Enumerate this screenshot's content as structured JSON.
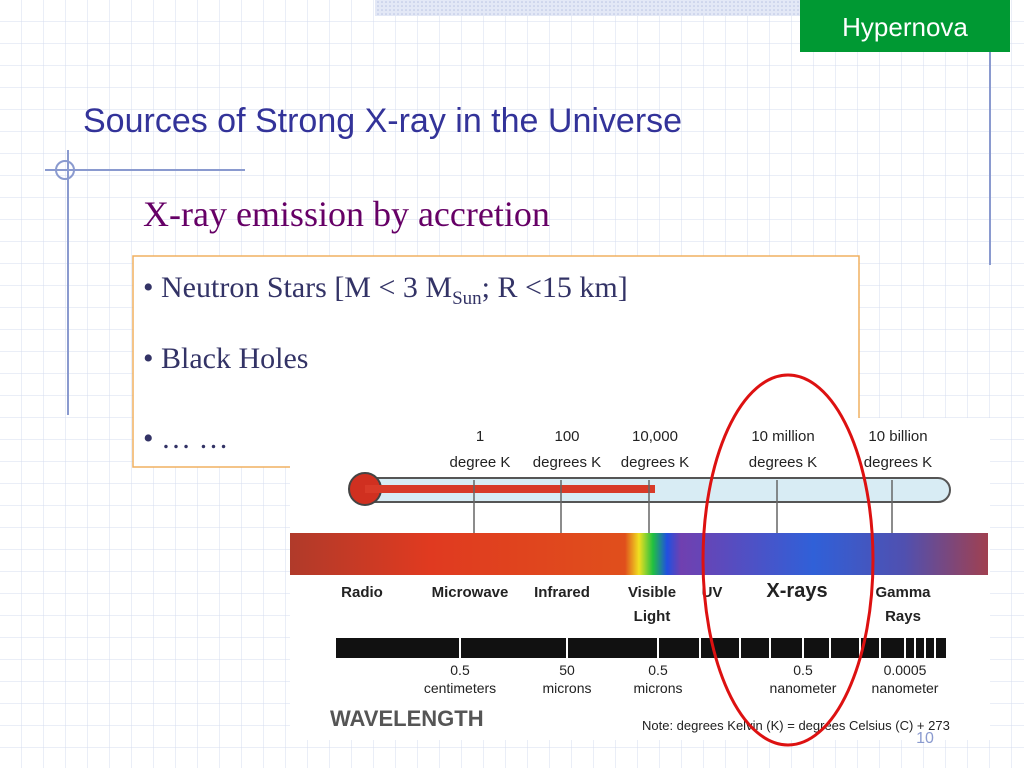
{
  "badge": "Hypernova",
  "title": "Sources of Strong X-ray in the Universe",
  "subtitle": "X-ray emission by accretion",
  "bullets": [
    {
      "text": "Neutron Stars [M < 3 M",
      "sub": "Sun",
      "tail": "; R <15 km]"
    },
    {
      "text": "Black Holes"
    },
    {
      "text": "… …"
    }
  ],
  "figure": {
    "temperatures": [
      {
        "value": "1",
        "unit": "degree K"
      },
      {
        "value": "100",
        "unit": "degrees K"
      },
      {
        "value": "10,000",
        "unit": "degrees K"
      },
      {
        "value": "10 million",
        "unit": "degrees K"
      },
      {
        "value": "10 billion",
        "unit": "degrees K"
      }
    ],
    "bands": [
      {
        "lines": [
          "Radio"
        ]
      },
      {
        "lines": [
          "Microwave"
        ]
      },
      {
        "lines": [
          "Infrared"
        ]
      },
      {
        "lines": [
          "Visible",
          "Light"
        ]
      },
      {
        "lines": [
          "UV"
        ]
      },
      {
        "lines": [
          "X-rays"
        ]
      },
      {
        "lines": [
          "Gamma",
          "Rays"
        ]
      }
    ],
    "wavelengths": [
      {
        "value": "0.5",
        "unit": "centimeters"
      },
      {
        "value": "50",
        "unit": "microns"
      },
      {
        "value": "0.5",
        "unit": "microns"
      },
      {
        "value": "0.5",
        "unit": "nanometer"
      },
      {
        "value": "0.0005",
        "unit": "nanometer"
      }
    ],
    "axis_label": "WAVELENGTH",
    "note": "Note: degrees Kelvin (K) = degrees Celsius (C) + 273"
  },
  "page_number": "10"
}
